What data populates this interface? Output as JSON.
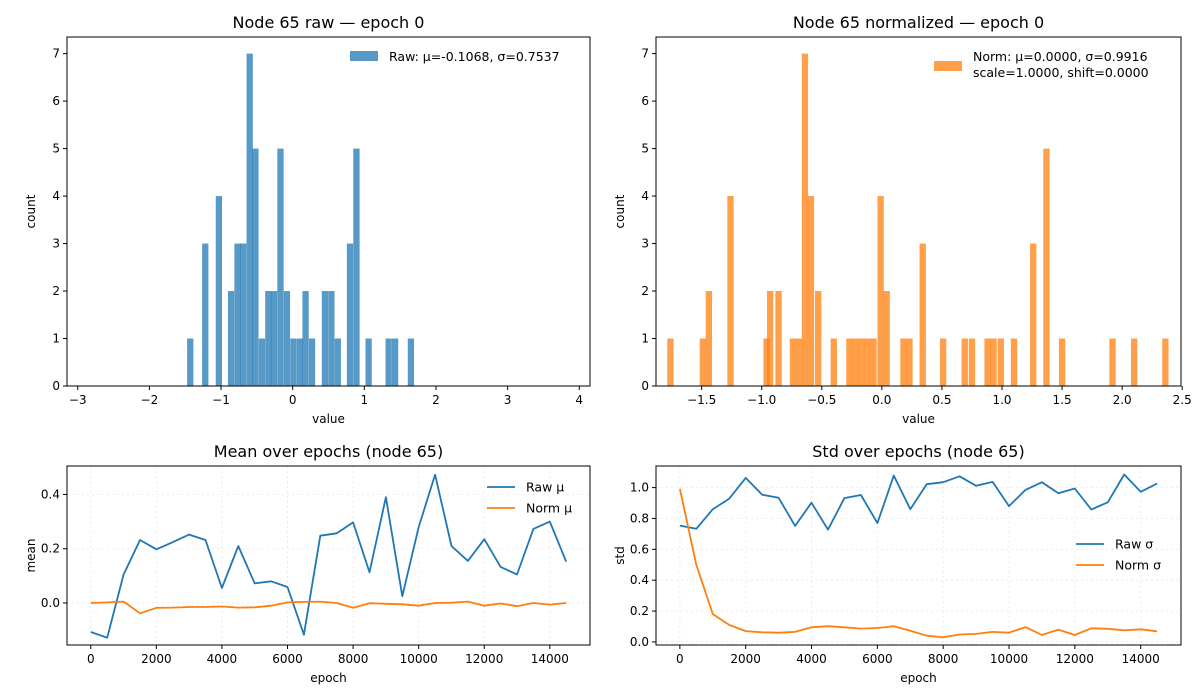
{
  "chart_data": [
    {
      "type": "bar",
      "title": "Node 65 raw — epoch 0",
      "xlabel": "value",
      "ylabel": "count",
      "xlim": [
        -3.15,
        4.15
      ],
      "ylim": [
        0,
        7.35
      ],
      "xticks": [
        -3,
        -2,
        -1,
        0,
        1,
        2,
        3,
        4
      ],
      "yticks": [
        0,
        1,
        2,
        3,
        4,
        5,
        6,
        7
      ],
      "bin_width": 0.0877,
      "color": "#1f77b4",
      "legend": {
        "label": "Raw: μ=-0.1068, σ=0.7537",
        "position": "top-right"
      },
      "bins": [
        {
          "x": -1.43,
          "count": 1
        },
        {
          "x": -1.22,
          "count": 3
        },
        {
          "x": -1.03,
          "count": 4
        },
        {
          "x": -0.86,
          "count": 2
        },
        {
          "x": -0.77,
          "count": 3
        },
        {
          "x": -0.69,
          "count": 3
        },
        {
          "x": -0.6,
          "count": 7
        },
        {
          "x": -0.52,
          "count": 5
        },
        {
          "x": -0.43,
          "count": 1
        },
        {
          "x": -0.34,
          "count": 2
        },
        {
          "x": -0.26,
          "count": 2
        },
        {
          "x": -0.17,
          "count": 5
        },
        {
          "x": -0.08,
          "count": 2
        },
        {
          "x": 0.01,
          "count": 1
        },
        {
          "x": 0.1,
          "count": 1
        },
        {
          "x": 0.18,
          "count": 2
        },
        {
          "x": 0.27,
          "count": 1
        },
        {
          "x": 0.45,
          "count": 2
        },
        {
          "x": 0.54,
          "count": 2
        },
        {
          "x": 0.63,
          "count": 1
        },
        {
          "x": 0.8,
          "count": 3
        },
        {
          "x": 0.89,
          "count": 5
        },
        {
          "x": 1.06,
          "count": 1
        },
        {
          "x": 1.34,
          "count": 1
        },
        {
          "x": 1.43,
          "count": 1
        },
        {
          "x": 1.65,
          "count": 1
        }
      ]
    },
    {
      "type": "bar",
      "title": "Node 65 normalized — epoch 0",
      "xlabel": "value",
      "ylabel": "count",
      "xlim": [
        -1.88,
        2.49
      ],
      "ylim": [
        0,
        7.35
      ],
      "xticks": [
        -1.5,
        -1.0,
        -0.5,
        0.0,
        0.5,
        1.0,
        1.5,
        2.0,
        2.5
      ],
      "xtick_labels": [
        "−1.5",
        "−1.0",
        "−0.5",
        "0.0",
        "0.5",
        "1.0",
        "1.5",
        "2.0",
        "2.5"
      ],
      "yticks": [
        0,
        1,
        2,
        3,
        4,
        5,
        6,
        7
      ],
      "bin_width": 0.0526,
      "color": "#ff7f0e",
      "legend": {
        "lines": [
          "Norm: μ=0.0000, σ=0.9916",
          "scale=1.0000, shift=0.0000"
        ],
        "position": "top-right"
      },
      "bins": [
        {
          "x": -1.76,
          "count": 1
        },
        {
          "x": -1.49,
          "count": 1
        },
        {
          "x": -1.44,
          "count": 2
        },
        {
          "x": -1.26,
          "count": 4
        },
        {
          "x": -0.96,
          "count": 1
        },
        {
          "x": -0.93,
          "count": 2
        },
        {
          "x": -0.86,
          "count": 2
        },
        {
          "x": -0.74,
          "count": 1
        },
        {
          "x": -0.69,
          "count": 1
        },
        {
          "x": -0.64,
          "count": 7
        },
        {
          "x": -0.59,
          "count": 4
        },
        {
          "x": -0.53,
          "count": 2
        },
        {
          "x": -0.4,
          "count": 1
        },
        {
          "x": -0.27,
          "count": 1
        },
        {
          "x": -0.22,
          "count": 1
        },
        {
          "x": -0.17,
          "count": 1
        },
        {
          "x": -0.12,
          "count": 1
        },
        {
          "x": -0.07,
          "count": 1
        },
        {
          "x": -0.01,
          "count": 4
        },
        {
          "x": 0.04,
          "count": 2
        },
        {
          "x": 0.18,
          "count": 1
        },
        {
          "x": 0.23,
          "count": 1
        },
        {
          "x": 0.34,
          "count": 3
        },
        {
          "x": 0.51,
          "count": 1
        },
        {
          "x": 0.69,
          "count": 1
        },
        {
          "x": 0.75,
          "count": 1
        },
        {
          "x": 0.88,
          "count": 1
        },
        {
          "x": 0.93,
          "count": 1
        },
        {
          "x": 0.99,
          "count": 1
        },
        {
          "x": 1.1,
          "count": 1
        },
        {
          "x": 1.26,
          "count": 3
        },
        {
          "x": 1.37,
          "count": 5
        },
        {
          "x": 1.5,
          "count": 1
        },
        {
          "x": 1.92,
          "count": 1
        },
        {
          "x": 2.1,
          "count": 1
        },
        {
          "x": 2.36,
          "count": 1
        }
      ]
    },
    {
      "type": "line",
      "title": "Mean over epochs (node 65)",
      "xlabel": "epoch",
      "ylabel": "mean",
      "xlim": [
        -725,
        15225
      ],
      "ylim": [
        -0.155,
        0.505
      ],
      "xticks": [
        0,
        2000,
        4000,
        6000,
        8000,
        10000,
        12000,
        14000
      ],
      "yticks": [
        0.0,
        0.2,
        0.4
      ],
      "ytick_labels": [
        "0.0",
        "0.2",
        "0.4"
      ],
      "grid": true,
      "legend_position": "top-right",
      "x": [
        0,
        500,
        1000,
        1500,
        2000,
        2500,
        3000,
        3500,
        4000,
        4500,
        5000,
        5500,
        6000,
        6500,
        7000,
        7500,
        8000,
        8500,
        9000,
        9500,
        10000,
        10500,
        11000,
        11500,
        12000,
        12500,
        13000,
        13500,
        14000,
        14500
      ],
      "series": [
        {
          "name": "Raw μ",
          "color": "#1f77b4",
          "values": [
            -0.107,
            -0.128,
            0.105,
            0.232,
            0.198,
            0.224,
            0.252,
            0.232,
            0.055,
            0.21,
            0.072,
            0.08,
            0.059,
            -0.117,
            0.248,
            0.257,
            0.297,
            0.113,
            0.39,
            0.025,
            0.28,
            0.473,
            0.21,
            0.155,
            0.235,
            0.133,
            0.105,
            0.273,
            0.3,
            0.152
          ]
        },
        {
          "name": "Norm μ",
          "color": "#ff7f0e",
          "values": [
            0.0,
            0.002,
            0.005,
            -0.038,
            -0.018,
            -0.017,
            -0.015,
            -0.015,
            -0.013,
            -0.017,
            -0.016,
            -0.01,
            0.002,
            0.004,
            0.005,
            0.0,
            -0.018,
            -0.001,
            -0.003,
            -0.005,
            -0.01,
            0.0,
            0.001,
            0.005,
            -0.01,
            -0.002,
            -0.012,
            0.0,
            -0.006,
            0.0
          ]
        }
      ]
    },
    {
      "type": "line",
      "title": "Std over epochs (node 65)",
      "xlabel": "epoch",
      "ylabel": "std",
      "xlim": [
        -725,
        15225
      ],
      "ylim": [
        -0.02,
        1.14
      ],
      "xticks": [
        0,
        2000,
        4000,
        6000,
        8000,
        10000,
        12000,
        14000
      ],
      "yticks": [
        0.0,
        0.2,
        0.4,
        0.6,
        0.8,
        1.0
      ],
      "ytick_labels": [
        "0.0",
        "0.2",
        "0.4",
        "0.6",
        "0.8",
        "1.0"
      ],
      "grid": true,
      "legend_position": "center-right",
      "x": [
        0,
        500,
        1000,
        1500,
        2000,
        2500,
        3000,
        3500,
        4000,
        4500,
        5000,
        5500,
        6000,
        6500,
        7000,
        7500,
        8000,
        8500,
        9000,
        9500,
        10000,
        10500,
        11000,
        11500,
        12000,
        12500,
        13000,
        13500,
        14000,
        14500
      ],
      "series": [
        {
          "name": "Raw σ",
          "color": "#1f77b4",
          "values": [
            0.754,
            0.733,
            0.86,
            0.928,
            1.063,
            0.954,
            0.934,
            0.752,
            0.902,
            0.728,
            0.932,
            0.952,
            0.77,
            1.078,
            0.86,
            1.022,
            1.035,
            1.073,
            1.012,
            1.037,
            0.88,
            0.985,
            1.035,
            0.963,
            0.994,
            0.858,
            0.905,
            1.085,
            0.973,
            1.026
          ]
        },
        {
          "name": "Norm σ",
          "color": "#ff7f0e",
          "values": [
            0.992,
            0.5,
            0.18,
            0.11,
            0.07,
            0.062,
            0.06,
            0.065,
            0.095,
            0.102,
            0.095,
            0.086,
            0.09,
            0.102,
            0.072,
            0.04,
            0.03,
            0.048,
            0.052,
            0.065,
            0.06,
            0.096,
            0.045,
            0.08,
            0.045,
            0.088,
            0.085,
            0.075,
            0.082,
            0.068
          ]
        }
      ]
    }
  ]
}
